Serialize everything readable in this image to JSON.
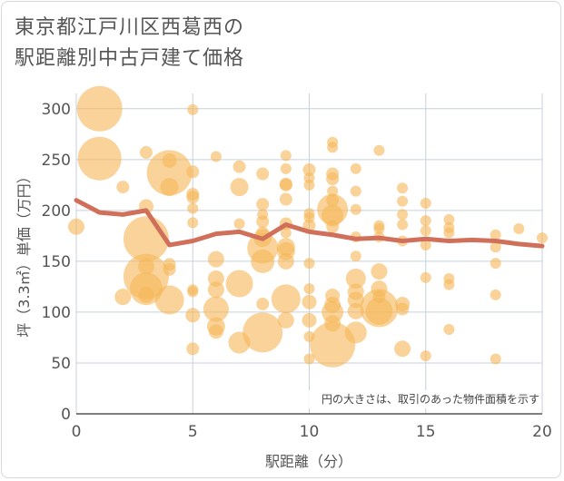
{
  "title": {
    "line1": "東京都江戸川区西葛西の",
    "line2": "駅距離別中古戸建て価格"
  },
  "note": "円の大きさは、取引のあった物件面積を示す",
  "chart_data": {
    "type": "scatter",
    "xlabel": "駅距離（分）",
    "ylabel": "坪（3.3㎡）単価（万円）",
    "xlim": [
      0,
      20
    ],
    "ylim": [
      0,
      315
    ],
    "x_ticks": [
      0,
      5,
      10,
      15,
      20
    ],
    "y_ticks": [
      0,
      50,
      100,
      150,
      200,
      250,
      300
    ],
    "grid": true,
    "colors": {
      "bubble": "#f5b85a",
      "line": "#d0705a",
      "grid": "#c8d0dc",
      "axis": "#555555"
    },
    "bubbles": [
      {
        "x": 0,
        "y": 184,
        "s": 9
      },
      {
        "x": 1,
        "y": 300,
        "s": 25
      },
      {
        "x": 1,
        "y": 251,
        "s": 24
      },
      {
        "x": 2,
        "y": 223,
        "s": 7
      },
      {
        "x": 2,
        "y": 115,
        "s": 9
      },
      {
        "x": 3,
        "y": 257,
        "s": 7
      },
      {
        "x": 3,
        "y": 204,
        "s": 8
      },
      {
        "x": 3,
        "y": 172,
        "s": 25
      },
      {
        "x": 3,
        "y": 145,
        "s": 9
      },
      {
        "x": 3,
        "y": 135,
        "s": 25
      },
      {
        "x": 3,
        "y": 123,
        "s": 18
      },
      {
        "x": 3,
        "y": 117,
        "s": 9
      },
      {
        "x": 4,
        "y": 249,
        "s": 8
      },
      {
        "x": 4,
        "y": 237,
        "s": 25
      },
      {
        "x": 4,
        "y": 223,
        "s": 10
      },
      {
        "x": 4,
        "y": 147,
        "s": 7
      },
      {
        "x": 4,
        "y": 142,
        "s": 7
      },
      {
        "x": 4,
        "y": 112,
        "s": 16
      },
      {
        "x": 5,
        "y": 299,
        "s": 6
      },
      {
        "x": 5,
        "y": 238,
        "s": 7
      },
      {
        "x": 5,
        "y": 216,
        "s": 7
      },
      {
        "x": 5,
        "y": 213,
        "s": 7
      },
      {
        "x": 5,
        "y": 202,
        "s": 6
      },
      {
        "x": 5,
        "y": 188,
        "s": 6
      },
      {
        "x": 5,
        "y": 122,
        "s": 6
      },
      {
        "x": 5,
        "y": 120,
        "s": 6
      },
      {
        "x": 5,
        "y": 97,
        "s": 8
      },
      {
        "x": 5,
        "y": 64,
        "s": 7
      },
      {
        "x": 6,
        "y": 253,
        "s": 6
      },
      {
        "x": 6,
        "y": 152,
        "s": 9
      },
      {
        "x": 6,
        "y": 133,
        "s": 9
      },
      {
        "x": 6,
        "y": 122,
        "s": 9
      },
      {
        "x": 6,
        "y": 103,
        "s": 14
      },
      {
        "x": 6,
        "y": 86,
        "s": 10
      },
      {
        "x": 6,
        "y": 81,
        "s": 8
      },
      {
        "x": 7,
        "y": 243,
        "s": 7
      },
      {
        "x": 7,
        "y": 223,
        "s": 10
      },
      {
        "x": 7,
        "y": 187,
        "s": 6
      },
      {
        "x": 7,
        "y": 128,
        "s": 15
      },
      {
        "x": 7,
        "y": 70,
        "s": 12
      },
      {
        "x": 8,
        "y": 236,
        "s": 7
      },
      {
        "x": 8,
        "y": 206,
        "s": 7
      },
      {
        "x": 8,
        "y": 196,
        "s": 6
      },
      {
        "x": 8,
        "y": 189,
        "s": 7
      },
      {
        "x": 8,
        "y": 178,
        "s": 7
      },
      {
        "x": 8,
        "y": 173,
        "s": 10
      },
      {
        "x": 8,
        "y": 163,
        "s": 17
      },
      {
        "x": 8,
        "y": 150,
        "s": 13
      },
      {
        "x": 8,
        "y": 108,
        "s": 7
      },
      {
        "x": 8,
        "y": 80,
        "s": 22
      },
      {
        "x": 9,
        "y": 254,
        "s": 6
      },
      {
        "x": 9,
        "y": 241,
        "s": 6
      },
      {
        "x": 9,
        "y": 226,
        "s": 7
      },
      {
        "x": 9,
        "y": 225,
        "s": 7
      },
      {
        "x": 9,
        "y": 211,
        "s": 7
      },
      {
        "x": 9,
        "y": 187,
        "s": 7
      },
      {
        "x": 9,
        "y": 178,
        "s": 6
      },
      {
        "x": 9,
        "y": 164,
        "s": 10
      },
      {
        "x": 9,
        "y": 160,
        "s": 10
      },
      {
        "x": 9,
        "y": 150,
        "s": 9
      },
      {
        "x": 9,
        "y": 113,
        "s": 16
      },
      {
        "x": 9,
        "y": 92,
        "s": 9
      },
      {
        "x": 10,
        "y": 240,
        "s": 7
      },
      {
        "x": 10,
        "y": 232,
        "s": 6
      },
      {
        "x": 10,
        "y": 225,
        "s": 6
      },
      {
        "x": 10,
        "y": 197,
        "s": 6
      },
      {
        "x": 10,
        "y": 193,
        "s": 6
      },
      {
        "x": 10,
        "y": 185,
        "s": 7
      },
      {
        "x": 10,
        "y": 148,
        "s": 6
      },
      {
        "x": 10,
        "y": 123,
        "s": 6
      },
      {
        "x": 10,
        "y": 110,
        "s": 8
      },
      {
        "x": 10,
        "y": 92,
        "s": 8
      },
      {
        "x": 10,
        "y": 76,
        "s": 6
      },
      {
        "x": 10,
        "y": 54,
        "s": 6
      },
      {
        "x": 11,
        "y": 267,
        "s": 6
      },
      {
        "x": 11,
        "y": 262,
        "s": 6
      },
      {
        "x": 11,
        "y": 236,
        "s": 7
      },
      {
        "x": 11,
        "y": 231,
        "s": 7
      },
      {
        "x": 11,
        "y": 219,
        "s": 6
      },
      {
        "x": 11,
        "y": 210,
        "s": 7
      },
      {
        "x": 11,
        "y": 201,
        "s": 17
      },
      {
        "x": 11,
        "y": 195,
        "s": 12
      },
      {
        "x": 11,
        "y": 184,
        "s": 7
      },
      {
        "x": 11,
        "y": 116,
        "s": 8
      },
      {
        "x": 11,
        "y": 107,
        "s": 9
      },
      {
        "x": 11,
        "y": 100,
        "s": 12
      },
      {
        "x": 11,
        "y": 89,
        "s": 9
      },
      {
        "x": 11,
        "y": 68,
        "s": 25
      },
      {
        "x": 12,
        "y": 241,
        "s": 6
      },
      {
        "x": 12,
        "y": 219,
        "s": 6
      },
      {
        "x": 12,
        "y": 201,
        "s": 6
      },
      {
        "x": 12,
        "y": 174,
        "s": 6
      },
      {
        "x": 12,
        "y": 155,
        "s": 6
      },
      {
        "x": 12,
        "y": 133,
        "s": 11
      },
      {
        "x": 12,
        "y": 120,
        "s": 9
      },
      {
        "x": 12,
        "y": 112,
        "s": 9
      },
      {
        "x": 12,
        "y": 101,
        "s": 9
      },
      {
        "x": 12,
        "y": 80,
        "s": 12
      },
      {
        "x": 13,
        "y": 259,
        "s": 6
      },
      {
        "x": 13,
        "y": 185,
        "s": 6
      },
      {
        "x": 13,
        "y": 182,
        "s": 6
      },
      {
        "x": 13,
        "y": 174,
        "s": 6
      },
      {
        "x": 13,
        "y": 140,
        "s": 9
      },
      {
        "x": 13,
        "y": 123,
        "s": 9
      },
      {
        "x": 13,
        "y": 115,
        "s": 7
      },
      {
        "x": 13,
        "y": 104,
        "s": 21
      },
      {
        "x": 13,
        "y": 101,
        "s": 15
      },
      {
        "x": 14,
        "y": 222,
        "s": 6
      },
      {
        "x": 14,
        "y": 209,
        "s": 6
      },
      {
        "x": 14,
        "y": 196,
        "s": 6
      },
      {
        "x": 14,
        "y": 186,
        "s": 6
      },
      {
        "x": 14,
        "y": 170,
        "s": 6
      },
      {
        "x": 14,
        "y": 108,
        "s": 8
      },
      {
        "x": 14,
        "y": 103,
        "s": 7
      },
      {
        "x": 14,
        "y": 64,
        "s": 9
      },
      {
        "x": 15,
        "y": 207,
        "s": 6
      },
      {
        "x": 15,
        "y": 190,
        "s": 6
      },
      {
        "x": 15,
        "y": 180,
        "s": 6
      },
      {
        "x": 15,
        "y": 166,
        "s": 6
      },
      {
        "x": 15,
        "y": 134,
        "s": 6
      },
      {
        "x": 15,
        "y": 57,
        "s": 6
      },
      {
        "x": 16,
        "y": 191,
        "s": 6
      },
      {
        "x": 16,
        "y": 183,
        "s": 6
      },
      {
        "x": 16,
        "y": 178,
        "s": 6
      },
      {
        "x": 16,
        "y": 133,
        "s": 6
      },
      {
        "x": 16,
        "y": 127,
        "s": 6
      },
      {
        "x": 16,
        "y": 83,
        "s": 6
      },
      {
        "x": 18,
        "y": 176,
        "s": 6
      },
      {
        "x": 18,
        "y": 164,
        "s": 6
      },
      {
        "x": 18,
        "y": 148,
        "s": 6
      },
      {
        "x": 18,
        "y": 117,
        "s": 6
      },
      {
        "x": 18,
        "y": 54,
        "s": 6
      },
      {
        "x": 19,
        "y": 182,
        "s": 6
      },
      {
        "x": 20,
        "y": 173,
        "s": 6
      }
    ],
    "trend": {
      "x": [
        0,
        1,
        2,
        3,
        4,
        5,
        6,
        7,
        8,
        9,
        10,
        11,
        12,
        13,
        14,
        15,
        16,
        17,
        18,
        19,
        20
      ],
      "y": [
        210,
        198,
        196,
        200,
        166,
        170,
        177,
        179,
        172,
        186,
        179,
        176,
        172,
        173,
        170,
        172,
        170,
        171,
        170,
        167,
        165
      ]
    }
  }
}
